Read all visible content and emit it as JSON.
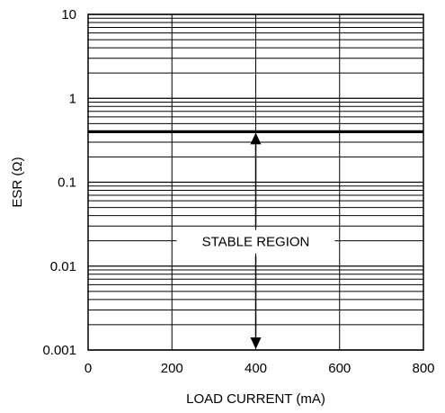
{
  "chart_data": {
    "type": "line",
    "xlabel": "LOAD CURRENT (mA)",
    "ylabel": "ESR (Ω)",
    "x_scale": "linear",
    "y_scale": "log",
    "xlim": [
      0,
      800
    ],
    "ylim": [
      0.001,
      10
    ],
    "x_ticks": [
      {
        "value": 0,
        "label": "0"
      },
      {
        "value": 200,
        "label": "200"
      },
      {
        "value": 400,
        "label": "400"
      },
      {
        "value": 600,
        "label": "600"
      },
      {
        "value": 800,
        "label": "800"
      }
    ],
    "y_ticks": [
      {
        "value": 0.001,
        "label": "0.001"
      },
      {
        "value": 0.01,
        "label": "0.01"
      },
      {
        "value": 0.1,
        "label": "0.1"
      },
      {
        "value": 1,
        "label": "1"
      },
      {
        "value": 10,
        "label": "10"
      }
    ],
    "grid": true,
    "series": [
      {
        "x": [
          0,
          800
        ],
        "y": [
          0.4,
          0.4
        ]
      }
    ],
    "annotations": [
      {
        "text": "STABLE REGION",
        "x": 400,
        "y": 0.0195,
        "arrow_from": 0.4,
        "arrow_to": 0.001
      }
    ]
  }
}
